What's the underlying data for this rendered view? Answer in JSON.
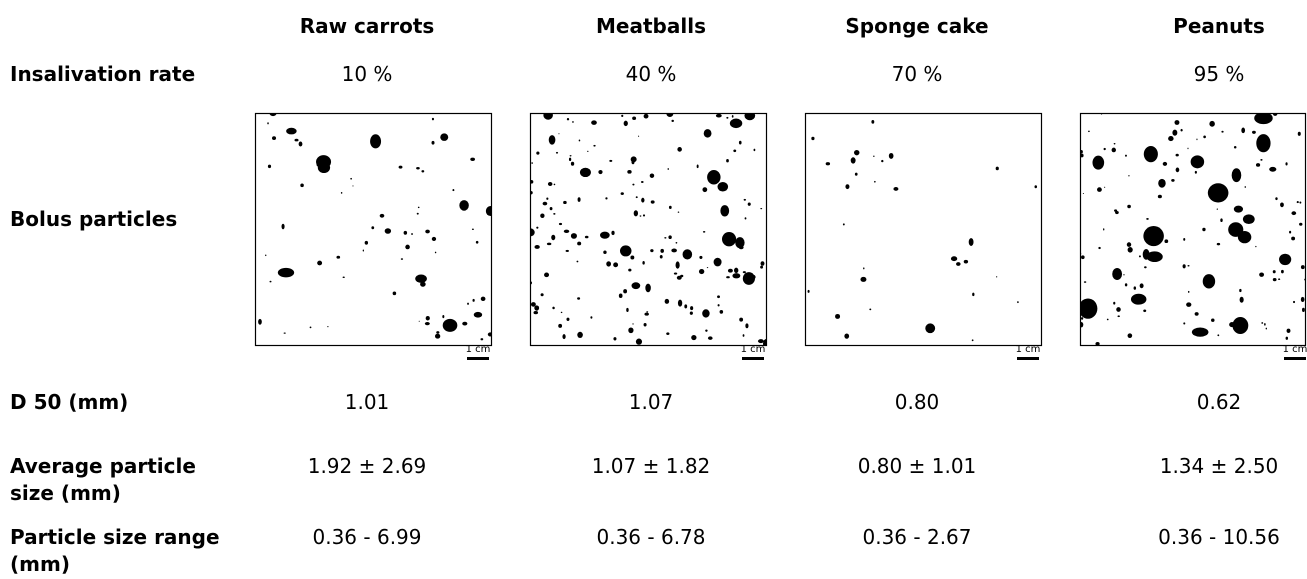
{
  "columns": [
    "Raw carrots",
    "Meatballs",
    "Sponge cake",
    "Peanuts"
  ],
  "rows": [
    {
      "label": "Insalivation rate",
      "values": [
        "10 %",
        "40 %",
        "70 %",
        "95 %"
      ]
    },
    {
      "label": "Bolus particles"
    },
    {
      "label": "D 50 (mm)",
      "values": [
        "1.01",
        "1.07",
        "0.80",
        "0.62"
      ]
    },
    {
      "label": "Average particle size (mm)",
      "values": [
        "1.92 ± 2.69",
        "1.07 ± 1.82",
        "0.80 ±  1.01",
        "1.34 ±  2.50"
      ]
    },
    {
      "label": "Particle size range (mm)",
      "values": [
        "0.36 - 6.99",
        "0.36 - 6.78",
        "0.36 - 2.67",
        "0.36 - 10.56"
      ]
    }
  ],
  "scale_bars": [
    "1 cm",
    "1 cm",
    "1 cm",
    "1 cm"
  ]
}
